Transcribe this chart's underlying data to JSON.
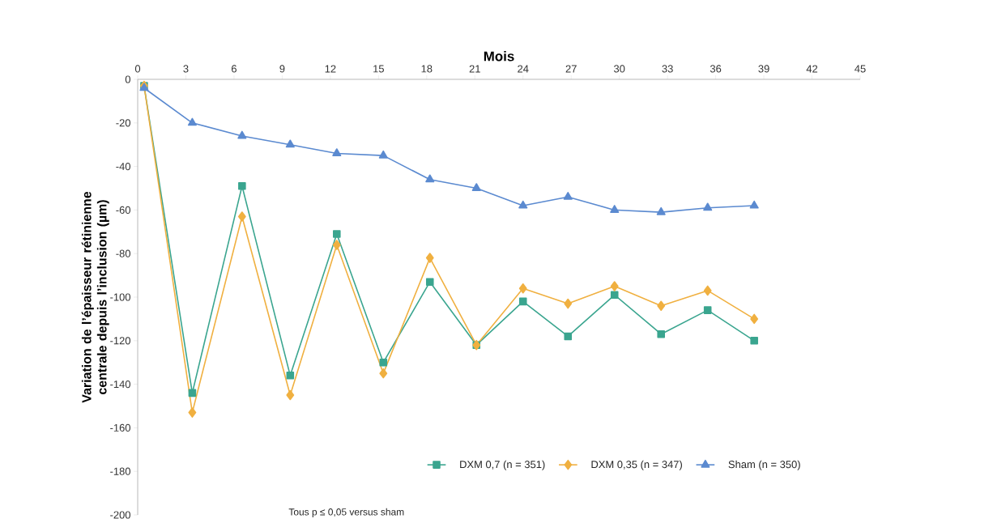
{
  "chart_data": {
    "type": "line",
    "xlabel": "Mois",
    "ylabel": "Variation de l’épaisseur rétinienne centrale depuis l’inclusion (µm)",
    "xlim": [
      0,
      45
    ],
    "xticks": [
      0,
      3,
      6,
      9,
      12,
      15,
      18,
      21,
      24,
      27,
      30,
      33,
      36,
      39,
      42,
      45
    ],
    "ylim": [
      -200,
      0
    ],
    "yticks": [
      -200,
      -180,
      -160,
      -140,
      -120,
      -100,
      -80,
      -60,
      -40,
      -20,
      0
    ],
    "grid": false,
    "legend": "bottom",
    "line_style": "solid",
    "annotations": [
      "Tous p ≤ 0,05 versus sham"
    ],
    "series": [
      {
        "name": "DXM 0,7 (n = 351)",
        "color": "#3aa58f",
        "marker": "square",
        "x": [
          0.4,
          3.4,
          6.5,
          9.5,
          12.4,
          15.3,
          18.2,
          21.1,
          24,
          26.8,
          29.7,
          32.6,
          35.5,
          38.4
        ],
        "values": [
          -3,
          -144,
          -49,
          -136,
          -71,
          -130,
          -93,
          -122,
          -102,
          -118,
          -99,
          -117,
          -106,
          -120
        ]
      },
      {
        "name": "DXM 0,35 (n = 347)",
        "color": "#f0b040",
        "marker": "diamond",
        "x": [
          0.4,
          3.4,
          6.5,
          9.5,
          12.4,
          15.3,
          18.2,
          21.1,
          24,
          26.8,
          29.7,
          32.6,
          35.5,
          38.4
        ],
        "values": [
          -3,
          -153,
          -63,
          -145,
          -76,
          -135,
          -82,
          -122,
          -96,
          -103,
          -95,
          -104,
          -97,
          -110
        ]
      },
      {
        "name": "Sham (n = 350)",
        "color": "#5b8ad0",
        "marker": "triangle",
        "x": [
          0.4,
          3.4,
          6.5,
          9.5,
          12.4,
          15.3,
          18.2,
          21.1,
          24,
          26.8,
          29.7,
          32.6,
          35.5,
          38.4
        ],
        "values": [
          -4,
          -20,
          -26,
          -30,
          -34,
          -35,
          -46,
          -50,
          -58,
          -54,
          -60,
          -61,
          -59,
          -58
        ]
      }
    ]
  }
}
